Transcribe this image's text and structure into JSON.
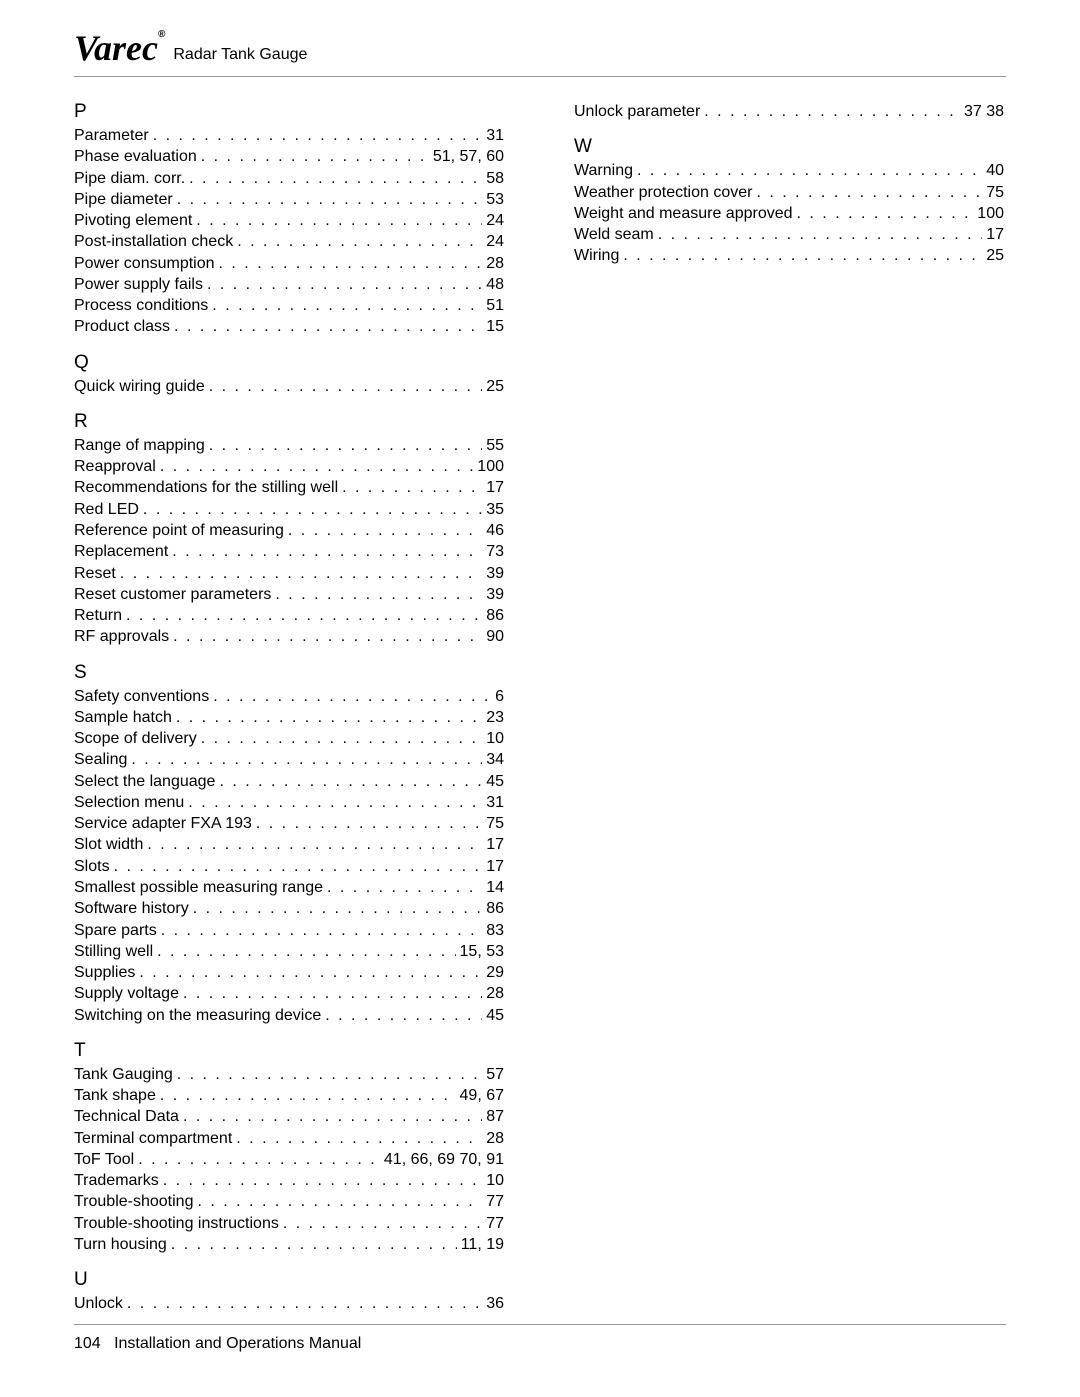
{
  "header": {
    "logo_text": "Varec",
    "title": "Radar Tank Gauge"
  },
  "footer": {
    "page_number": "104",
    "label": "Installation and Operations Manual"
  },
  "left_column": [
    {
      "letter": "P"
    },
    {
      "term": "Parameter",
      "pages": "31"
    },
    {
      "term": "Phase evaluation",
      "pages": "51, 57, 60"
    },
    {
      "term": "Pipe diam. corr.",
      "pages": "58"
    },
    {
      "term": "Pipe diameter",
      "pages": "53"
    },
    {
      "term": "Pivoting element",
      "pages": "24"
    },
    {
      "term": "Post-installation check",
      "pages": "24"
    },
    {
      "term": "Power consumption",
      "pages": "28"
    },
    {
      "term": "Power supply fails",
      "pages": "48"
    },
    {
      "term": "Process conditions",
      "pages": "51"
    },
    {
      "term": "Product class",
      "pages": "15"
    },
    {
      "letter": "Q"
    },
    {
      "term": "Quick wiring guide",
      "pages": "25"
    },
    {
      "letter": "R"
    },
    {
      "term": "Range of mapping",
      "pages": "55"
    },
    {
      "term": "Reapproval",
      "pages": "100"
    },
    {
      "term": "Recommendations for the stilling well",
      "pages": "17"
    },
    {
      "term": "Red LED",
      "pages": "35"
    },
    {
      "term": "Reference point of measuring",
      "pages": "46"
    },
    {
      "term": "Replacement",
      "pages": "73"
    },
    {
      "term": "Reset",
      "pages": "39"
    },
    {
      "term": "Reset customer parameters",
      "pages": "39"
    },
    {
      "term": "Return",
      "pages": "86"
    },
    {
      "term": "RF approvals",
      "pages": "90"
    },
    {
      "letter": "S"
    },
    {
      "term": "Safety conventions",
      "pages": "6"
    },
    {
      "term": "Sample hatch",
      "pages": "23"
    },
    {
      "term": "Scope of delivery",
      "pages": "10"
    },
    {
      "term": "Sealing",
      "pages": "34"
    },
    {
      "term": "Select the language",
      "pages": "45"
    },
    {
      "term": "Selection menu",
      "pages": "31"
    },
    {
      "term": "Service adapter FXA 193",
      "pages": "75"
    },
    {
      "term": "Slot width",
      "pages": "17"
    },
    {
      "term": "Slots",
      "pages": "17"
    },
    {
      "term": "Smallest possible measuring range",
      "pages": "14"
    },
    {
      "term": "Software history",
      "pages": "86"
    },
    {
      "term": "Spare parts",
      "pages": "83"
    },
    {
      "term": "Stilling well",
      "pages": "15, 53"
    },
    {
      "term": "Supplies",
      "pages": "29"
    },
    {
      "term": "Supply voltage",
      "pages": "28"
    },
    {
      "term": "Switching on the measuring device",
      "pages": "45"
    },
    {
      "letter": "T"
    },
    {
      "term": "Tank Gauging",
      "pages": "57"
    },
    {
      "term": "Tank shape",
      "pages": "49, 67"
    },
    {
      "term": "Technical Data",
      "pages": "87"
    },
    {
      "term": "Terminal compartment",
      "pages": "28"
    },
    {
      "term": "ToF Tool",
      "pages": "41, 66, 69 70, 91"
    },
    {
      "term": "Trademarks",
      "pages": "10"
    },
    {
      "term": "Trouble-shooting",
      "pages": "77"
    },
    {
      "term": "Trouble-shooting instructions",
      "pages": "77"
    },
    {
      "term": "Turn housing",
      "pages": "11, 19"
    },
    {
      "letter": "U"
    },
    {
      "term": "Unlock",
      "pages": "36"
    }
  ],
  "right_column": [
    {
      "term": "Unlock parameter",
      "pages": "37 38"
    },
    {
      "letter": "W"
    },
    {
      "term": "Warning",
      "pages": "40"
    },
    {
      "term": "Weather protection cover",
      "pages": "75"
    },
    {
      "term": "Weight and measure approved",
      "pages": "100"
    },
    {
      "term": "Weld seam",
      "pages": "17"
    },
    {
      "term": "Wiring",
      "pages": "25"
    }
  ]
}
